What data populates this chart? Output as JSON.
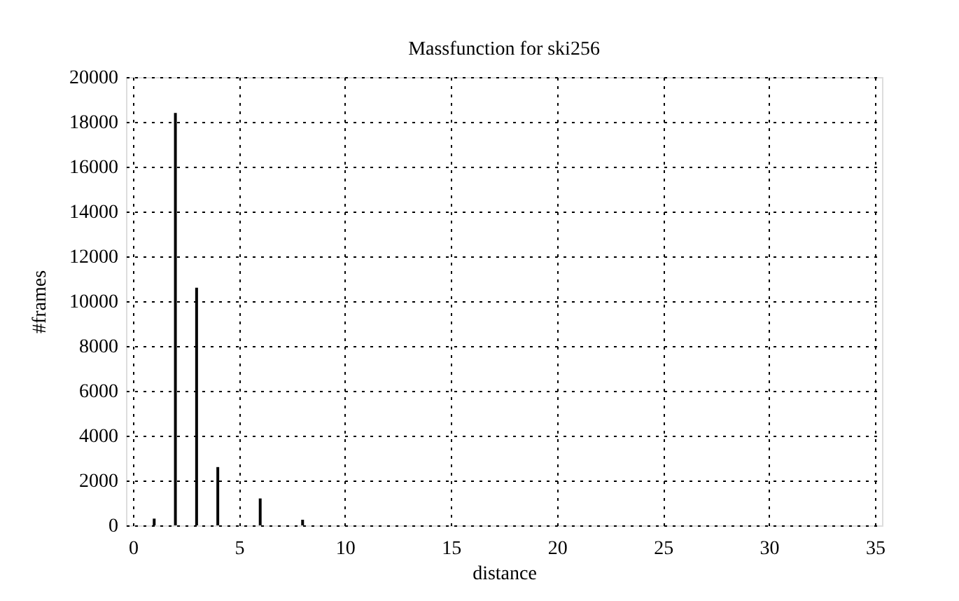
{
  "chart_data": {
    "type": "bar",
    "title": "Massfunction for ski256",
    "xlabel": "distance",
    "ylabel": "#frames",
    "x": [
      1,
      2,
      3,
      4,
      6,
      8
    ],
    "values": [
      300,
      18400,
      10600,
      2600,
      1200,
      250
    ],
    "color": "#000000",
    "xlim": [
      0,
      35
    ],
    "xticks": [
      0,
      5,
      10,
      15,
      20,
      25,
      30,
      35
    ],
    "ylim": [
      0,
      20000
    ],
    "yticks": [
      0,
      2000,
      4000,
      6000,
      8000,
      10000,
      12000,
      14000,
      16000,
      18000,
      20000
    ],
    "grid": true
  }
}
